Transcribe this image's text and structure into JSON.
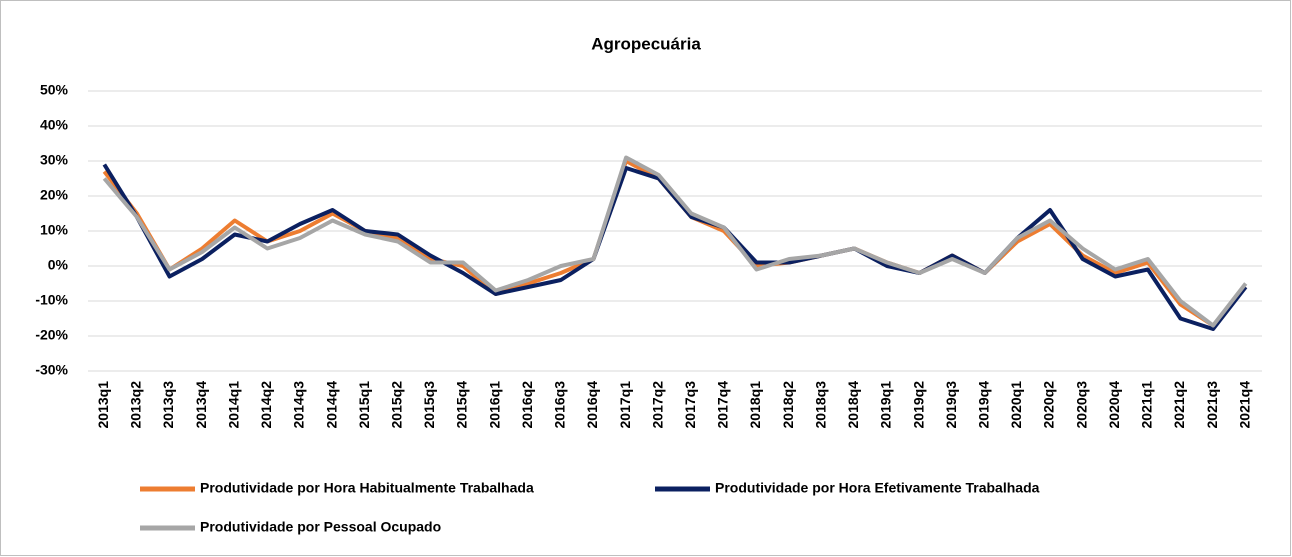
{
  "chart_data": {
    "type": "line",
    "title": "Agropecuária",
    "categories": [
      "2013q1",
      "2013q2",
      "2013q3",
      "2013q4",
      "2014q1",
      "2014q2",
      "2014q3",
      "2014q4",
      "2015q1",
      "2015q2",
      "2015q3",
      "2015q4",
      "2016q1",
      "2016q2",
      "2016q3",
      "2016q4",
      "2017q1",
      "2017q2",
      "2017q3",
      "2017q4",
      "2018q1",
      "2018q2",
      "2018q3",
      "2018q4",
      "2019q1",
      "2019q2",
      "2019q3",
      "2019q4",
      "2020q1",
      "2020q2",
      "2020q3",
      "2020q4",
      "2021q1",
      "2021q2",
      "2021q3",
      "2021q4"
    ],
    "series": [
      {
        "name": "Produtividade por Hora Habitualmente Trabalhada",
        "color": "#ed7d31",
        "values": [
          27,
          15,
          -1,
          5,
          13,
          7,
          10,
          15,
          10,
          8,
          2,
          0,
          -8,
          -5,
          -2,
          2,
          30,
          25,
          14,
          10,
          0,
          1,
          3,
          5,
          1,
          -2,
          3,
          -2,
          7,
          12,
          3,
          -2,
          1,
          -11,
          -17,
          -6
        ]
      },
      {
        "name": "Produtividade por Hora Efetivamente Trabalhada",
        "color": "#0b2060",
        "values": [
          29,
          14,
          -3,
          2,
          9,
          7,
          12,
          16,
          10,
          9,
          3,
          -2,
          -8,
          -6,
          -4,
          2,
          28,
          25,
          14,
          11,
          1,
          1,
          3,
          5,
          0,
          -2,
          3,
          -2,
          8,
          16,
          2,
          -3,
          -1,
          -15,
          -18,
          -6
        ]
      },
      {
        "name": "Produtividade por Pessoal Ocupado",
        "color": "#a6a6a6",
        "values": [
          25,
          14,
          -1,
          4,
          11,
          5,
          8,
          13,
          9,
          7,
          1,
          1,
          -7,
          -4,
          0,
          2,
          31,
          26,
          15,
          11,
          -1,
          2,
          3,
          5,
          1,
          -2,
          2,
          -2,
          8,
          13,
          5,
          -1,
          2,
          -10,
          -17,
          -5
        ]
      }
    ],
    "ylim": [
      -30,
      50
    ],
    "yticks": [
      {
        "value": -30,
        "label": "-30%"
      },
      {
        "value": -20,
        "label": "-20%"
      },
      {
        "value": -10,
        "label": "-10%"
      },
      {
        "value": 0,
        "label": "0%"
      },
      {
        "value": 10,
        "label": "10%"
      },
      {
        "value": 20,
        "label": "20%"
      },
      {
        "value": 30,
        "label": "30%"
      },
      {
        "value": 40,
        "label": "40%"
      },
      {
        "value": 50,
        "label": "50%"
      }
    ],
    "grid": true
  }
}
